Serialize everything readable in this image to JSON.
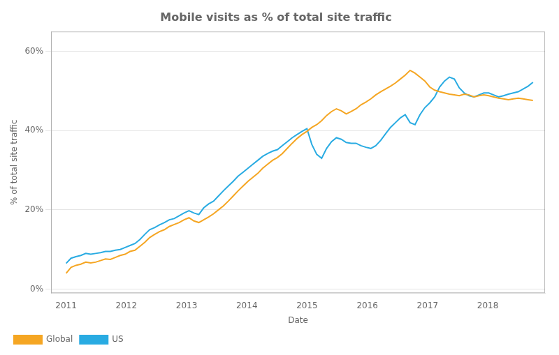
{
  "chart_data": {
    "type": "line",
    "title": "Mobile visits as % of total site traffic",
    "xlabel": "Date",
    "ylabel": "% of total site traffic",
    "xlim": [
      2010.75,
      2018.95
    ],
    "xticks": [
      2011,
      2012,
      2013,
      2014,
      2015,
      2016,
      2017,
      2018
    ],
    "ylim": [
      -0.01,
      0.65
    ],
    "yticks": [
      {
        "value": 0.0,
        "label": "0%"
      },
      {
        "value": 0.2,
        "label": "20%"
      },
      {
        "value": 0.4,
        "label": "40%"
      },
      {
        "value": 0.6,
        "label": "60%"
      }
    ],
    "grid": "y",
    "legend": "bottom",
    "x": [
      2011.0,
      2011.0816,
      2011.1632,
      2011.2447,
      2011.3263,
      2011.4079,
      2011.4895,
      2011.5711,
      2011.6526,
      2011.7342,
      2011.8158,
      2011.8974,
      2011.9789,
      2012.0605,
      2012.1421,
      2012.2237,
      2012.3053,
      2012.3868,
      2012.4684,
      2012.55,
      2012.6316,
      2012.7132,
      2012.7947,
      2012.8763,
      2012.9579,
      2013.0395,
      2013.1211,
      2013.2026,
      2013.2842,
      2013.3658,
      2013.4474,
      2013.5289,
      2013.6105,
      2013.6921,
      2013.7737,
      2013.8553,
      2013.9368,
      2014.0184,
      2014.1,
      2014.1816,
      2014.2632,
      2014.3447,
      2014.4263,
      2014.5079,
      2014.5895,
      2014.6711,
      2014.7526,
      2014.8342,
      2014.9158,
      2014.9974,
      2015.0789,
      2015.1605,
      2015.2421,
      2015.3237,
      2015.4053,
      2015.4868,
      2015.5684,
      2015.65,
      2015.7316,
      2015.8132,
      2015.8947,
      2015.9763,
      2016.0579,
      2016.1395,
      2016.2211,
      2016.3026,
      2016.3842,
      2016.4658,
      2016.5474,
      2016.6289,
      2016.7105,
      2016.7921,
      2016.8737,
      2016.9553,
      2017.0368,
      2017.1184,
      2017.2,
      2017.2816,
      2017.3632,
      2017.4447,
      2017.5263,
      2017.6079,
      2017.6895,
      2017.7711,
      2017.8526,
      2017.9342,
      2018.0158,
      2018.0974,
      2018.1789,
      2018.2605,
      2018.3421,
      2018.4237,
      2018.5053,
      2018.5868,
      2018.6684,
      2018.75
    ],
    "series": [
      {
        "name": "Global",
        "color": "#F5A623",
        "values": [
          0.04,
          0.055,
          0.06,
          0.063,
          0.068,
          0.066,
          0.068,
          0.072,
          0.076,
          0.075,
          0.08,
          0.085,
          0.088,
          0.095,
          0.098,
          0.108,
          0.118,
          0.13,
          0.138,
          0.145,
          0.15,
          0.158,
          0.163,
          0.168,
          0.175,
          0.18,
          0.172,
          0.168,
          0.175,
          0.182,
          0.19,
          0.2,
          0.21,
          0.222,
          0.235,
          0.248,
          0.26,
          0.272,
          0.282,
          0.292,
          0.305,
          0.315,
          0.325,
          0.332,
          0.342,
          0.355,
          0.368,
          0.38,
          0.39,
          0.398,
          0.408,
          0.415,
          0.425,
          0.438,
          0.448,
          0.455,
          0.45,
          0.442,
          0.448,
          0.455,
          0.465,
          0.472,
          0.48,
          0.49,
          0.498,
          0.505,
          0.512,
          0.52,
          0.53,
          0.54,
          0.552,
          0.545,
          0.535,
          0.525,
          0.51,
          0.502,
          0.498,
          0.495,
          0.492,
          0.49,
          0.488,
          0.492,
          0.49,
          0.485,
          0.488,
          0.49,
          0.488,
          0.485,
          0.482,
          0.48,
          0.478,
          0.48,
          0.482,
          0.48,
          0.478,
          0.476
        ]
      },
      {
        "name": "US",
        "color": "#29ABE2",
        "values": [
          0.065,
          0.078,
          0.082,
          0.085,
          0.09,
          0.088,
          0.09,
          0.092,
          0.095,
          0.095,
          0.098,
          0.1,
          0.105,
          0.11,
          0.115,
          0.125,
          0.138,
          0.15,
          0.155,
          0.162,
          0.168,
          0.175,
          0.178,
          0.185,
          0.192,
          0.198,
          0.192,
          0.188,
          0.205,
          0.215,
          0.222,
          0.235,
          0.248,
          0.26,
          0.272,
          0.285,
          0.295,
          0.305,
          0.315,
          0.325,
          0.335,
          0.342,
          0.348,
          0.352,
          0.362,
          0.372,
          0.382,
          0.39,
          0.398,
          0.405,
          0.365,
          0.34,
          0.33,
          0.355,
          0.372,
          0.382,
          0.378,
          0.37,
          0.368,
          0.368,
          0.362,
          0.358,
          0.355,
          0.362,
          0.375,
          0.392,
          0.408,
          0.42,
          0.432,
          0.44,
          0.42,
          0.415,
          0.44,
          0.458,
          0.47,
          0.485,
          0.51,
          0.525,
          0.535,
          0.53,
          0.508,
          0.495,
          0.488,
          0.485,
          0.49,
          0.495,
          0.495,
          0.49,
          0.485,
          0.488,
          0.492,
          0.495,
          0.498,
          0.505,
          0.512,
          0.522
        ]
      }
    ]
  }
}
